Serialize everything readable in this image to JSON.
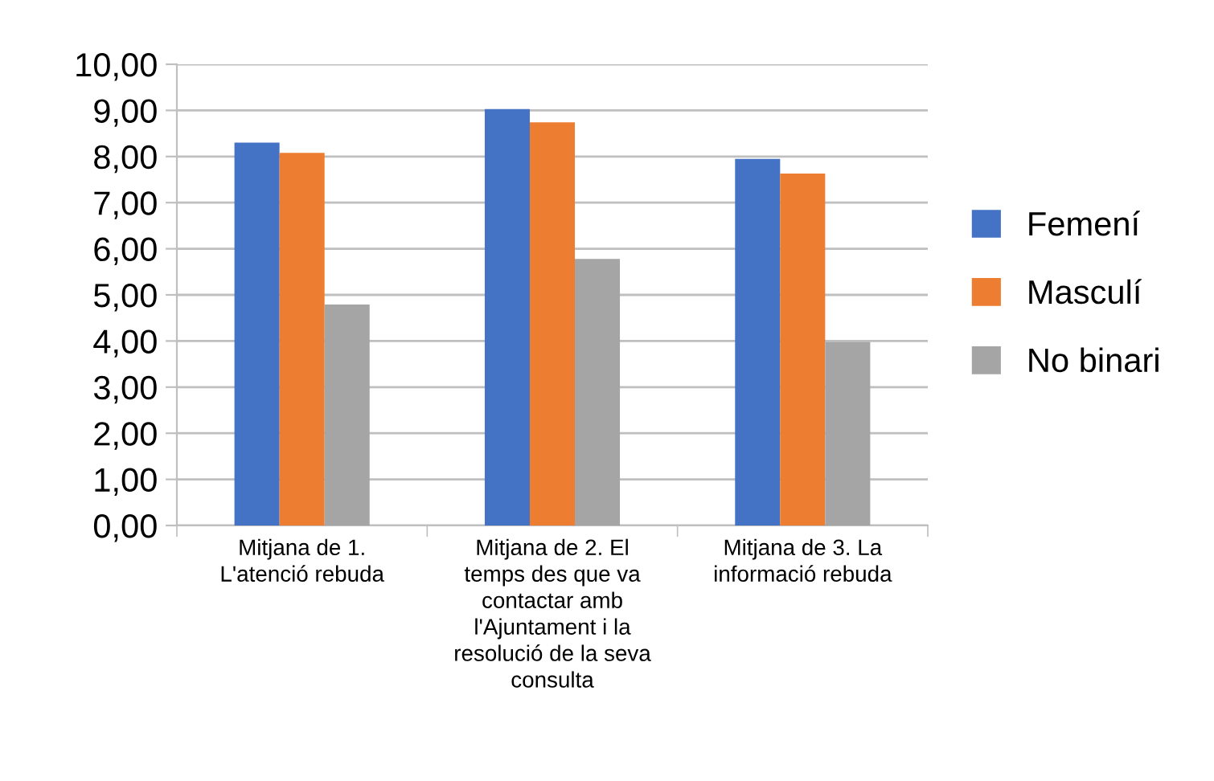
{
  "chart_data": {
    "type": "bar",
    "categories": [
      "Mitjana de 1.\nL'atenció rebuda",
      "Mitjana de 2. El\ntemps des que va\ncontactar amb\nl'Ajuntament i la\nresolució de la seva\nconsulta",
      "Mitjana de 3. La\ninformació rebuda"
    ],
    "series": [
      {
        "name": "Femení",
        "color": "#4472c4",
        "values": [
          8.3,
          9.03,
          7.95
        ]
      },
      {
        "name": "Masculí",
        "color": "#ed7d31",
        "values": [
          8.08,
          8.74,
          7.63
        ]
      },
      {
        "name": "No binari",
        "color": "#a5a5a5",
        "values": [
          4.79,
          5.78,
          3.98
        ]
      }
    ],
    "ylim": [
      0,
      10
    ],
    "yticks": [
      {
        "value": 0,
        "label": "0,00"
      },
      {
        "value": 1,
        "label": "1,00"
      },
      {
        "value": 2,
        "label": "2,00"
      },
      {
        "value": 3,
        "label": "3,00"
      },
      {
        "value": 4,
        "label": "4,00"
      },
      {
        "value": 5,
        "label": "5,00"
      },
      {
        "value": 6,
        "label": "6,00"
      },
      {
        "value": 7,
        "label": "7,00"
      },
      {
        "value": 8,
        "label": "8,00"
      },
      {
        "value": 9,
        "label": "9,00"
      },
      {
        "value": 10,
        "label": "10,00"
      }
    ],
    "grid": "y",
    "legend": "right"
  }
}
